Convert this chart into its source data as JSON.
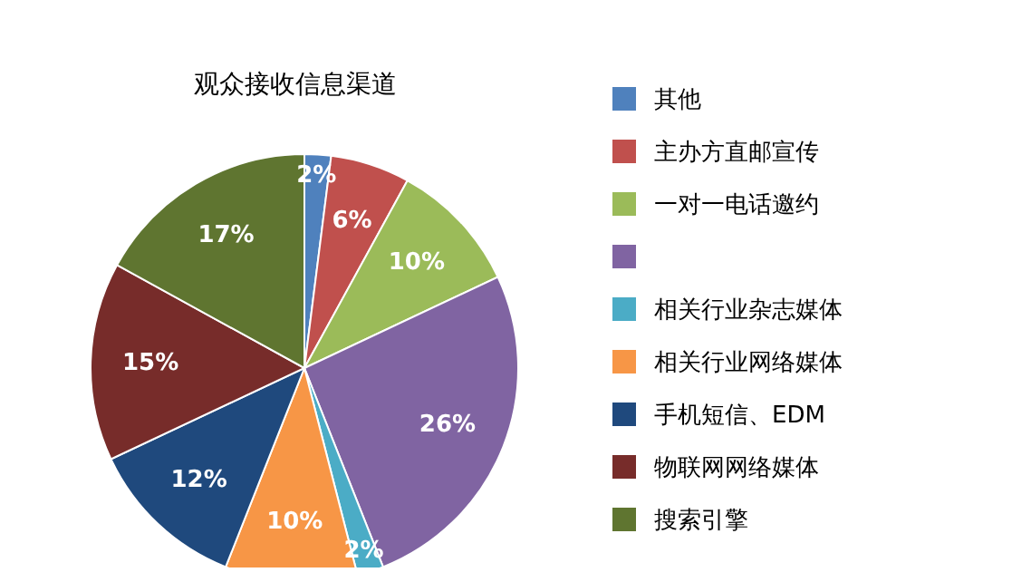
{
  "chart_data": {
    "type": "pie",
    "title": "观众接收信息渠道",
    "categories": [
      "其他",
      "主办方直邮宣传",
      "一对一电话邀约",
      null,
      "相关行业杂志媒体",
      "相关行业网络媒体",
      "手机短信、EDM",
      "物联网网络媒体",
      "搜索引擎"
    ],
    "values": [
      2,
      6,
      10,
      26,
      2,
      10,
      12,
      15,
      17
    ],
    "colors": [
      "#4f81bd",
      "#c0504d",
      "#9bbb59",
      "#8064a2",
      "#4bacc6",
      "#f79646",
      "#1f497d",
      "#772c2a",
      "#5f7530"
    ],
    "value_labels": [
      "2%",
      "6%",
      "10%",
      "26%",
      "2%",
      "10%",
      "12%",
      "15%",
      "17%"
    ],
    "legend": "right"
  }
}
